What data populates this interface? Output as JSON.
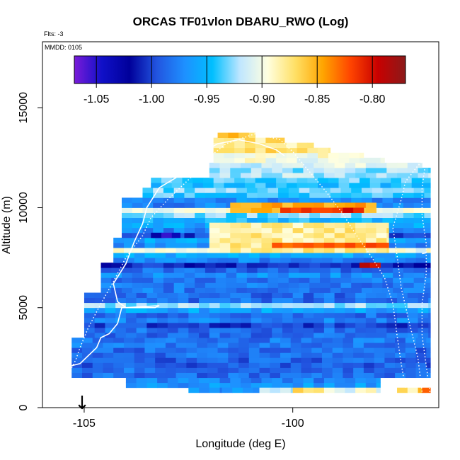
{
  "chart_data": {
    "type": "heatmap",
    "title": "ORCAS TF01vlon DBARU_RWO (Log)",
    "flts_label": "Flts: -3",
    "mmdd_label": "MMDD: 0105",
    "xlabel": "Longitude (deg E)",
    "ylabel": "Altitude (m)",
    "xlim": [
      -106.0,
      -96.5
    ],
    "ylim": [
      0,
      18300
    ],
    "xticks": [
      -105,
      -100
    ],
    "yticks": [
      0,
      5000,
      10000,
      15000
    ],
    "colorbar": {
      "range": [
        -1.07,
        -0.77
      ],
      "ticks": [
        -1.05,
        -1.0,
        -0.95,
        -0.9,
        -0.85,
        -0.8
      ],
      "tick_labels": [
        "-1.05",
        "-1.00",
        "-0.95",
        "-0.90",
        "-0.85",
        "-0.80"
      ],
      "colors": [
        "#7a1bd9",
        "#1010c8",
        "#00009a",
        "#2255e0",
        "#1e90ff",
        "#00bfff",
        "#bfe6ff",
        "#ffffe0",
        "#ffe066",
        "#ffa500",
        "#ff4500",
        "#c80000",
        "#8b1a1a"
      ]
    },
    "arrow_marker": {
      "longitude": -105.05,
      "label": "↓"
    },
    "grid": {
      "dx": 0.25,
      "dy": 250
    },
    "bands": [
      [
        1000,
        1250,
        -104.0,
        -97.9,
        -0.965
      ],
      [
        1250,
        1500,
        -104.0,
        -97.9,
        -0.975
      ],
      [
        1500,
        2000,
        -105.3,
        -96.7,
        -0.985
      ],
      [
        2000,
        2500,
        -105.3,
        -96.7,
        -0.99
      ],
      [
        2500,
        3000,
        -105.3,
        -96.7,
        -0.985
      ],
      [
        3000,
        3500,
        -105.3,
        -96.7,
        -0.98
      ],
      [
        3500,
        4000,
        -105.0,
        -96.7,
        -0.985
      ],
      [
        4000,
        4250,
        -105.0,
        -96.7,
        -1.0
      ],
      [
        4250,
        4500,
        -105.0,
        -96.7,
        -0.975
      ],
      [
        4500,
        4750,
        -105.0,
        -96.7,
        -0.985
      ],
      [
        4750,
        5000,
        -105.0,
        -96.7,
        -0.96
      ],
      [
        5000,
        5250,
        -105.0,
        -96.7,
        -0.925
      ],
      [
        5250,
        5750,
        -105.0,
        -96.7,
        -0.985
      ],
      [
        5750,
        6500,
        -104.6,
        -96.7,
        -0.98
      ],
      [
        6500,
        6750,
        -104.6,
        -96.7,
        -0.97
      ],
      [
        6750,
        7000,
        -104.6,
        -96.7,
        -0.985
      ],
      [
        7000,
        7250,
        -104.6,
        -96.7,
        -1.01
      ],
      [
        7250,
        7500,
        -104.3,
        -96.7,
        -0.975
      ],
      [
        7500,
        7750,
        -104.3,
        -96.7,
        -0.955
      ],
      [
        7750,
        8000,
        -104.3,
        -96.7,
        -0.9
      ],
      [
        8000,
        8250,
        -104.3,
        -96.7,
        -0.975
      ],
      [
        8250,
        8500,
        -104.3,
        -96.7,
        -0.96
      ],
      [
        8500,
        8750,
        -104.1,
        -96.7,
        -1.0
      ],
      [
        8750,
        9000,
        -104.1,
        -96.7,
        -0.975
      ],
      [
        9000,
        9250,
        -104.1,
        -96.7,
        -0.96
      ],
      [
        9250,
        9500,
        -104.1,
        -96.7,
        -0.95
      ],
      [
        9500,
        9750,
        -104.1,
        -96.7,
        -0.93
      ],
      [
        9750,
        10000,
        -104.1,
        -96.7,
        -0.9
      ],
      [
        10000,
        10250,
        -104.1,
        -96.7,
        -0.975
      ],
      [
        10250,
        10500,
        -104.1,
        -96.7,
        -0.97
      ],
      [
        10500,
        10750,
        -103.6,
        -96.7,
        -0.94
      ],
      [
        10750,
        11000,
        -103.6,
        -96.7,
        -0.93
      ],
      [
        11000,
        11250,
        -103.4,
        -96.7,
        -0.945
      ],
      [
        11250,
        11500,
        -103.4,
        -96.7,
        -0.935
      ],
      [
        11500,
        11750,
        -102.0,
        -96.7,
        -0.92
      ],
      [
        11750,
        12000,
        -102.0,
        -96.7,
        -0.925
      ],
      [
        12000,
        12250,
        -102.0,
        -96.9,
        -0.91
      ],
      [
        12250,
        12500,
        -101.9,
        -97.8,
        -0.9
      ],
      [
        12500,
        12750,
        -101.9,
        -98.3,
        -0.895
      ],
      [
        12750,
        13000,
        -101.9,
        -99.1,
        -0.87
      ],
      [
        13000,
        13250,
        -101.9,
        -99.5,
        -0.885
      ],
      [
        13250,
        13500,
        -101.9,
        -100.2,
        -0.875
      ],
      [
        13500,
        13750,
        -101.8,
        -100.9,
        -0.86
      ]
    ],
    "hotspots": [
      [
        7750,
        9250,
        -102.0,
        -97.7,
        -0.88
      ],
      [
        8000,
        8250,
        -100.5,
        -97.7,
        -0.83
      ],
      [
        9750,
        10250,
        -101.5,
        -98.0,
        -0.85
      ],
      [
        9750,
        10000,
        -100.3,
        -98.3,
        -0.81
      ],
      [
        8500,
        8750,
        -103.4,
        -102.7,
        -1.04
      ],
      [
        7000,
        7250,
        -98.4,
        -97.9,
        -0.8
      ]
    ],
    "surface_cells": [
      [
        -102.5,
        -101.7,
        -0.97
      ],
      [
        -101.7,
        -100.8,
        -0.955
      ],
      [
        -100.8,
        -100.0,
        -0.915
      ],
      [
        -100.0,
        -99.0,
        -0.88
      ],
      [
        -99.0,
        -97.9,
        -0.9
      ],
      [
        -97.5,
        -96.9,
        -0.87
      ],
      [
        -96.9,
        -96.7,
        -0.83
      ]
    ],
    "flight_tracks": [
      {
        "style": "solid",
        "points": [
          [
            -105.3,
            2100
          ],
          [
            -105.1,
            2200
          ],
          [
            -104.9,
            2600
          ],
          [
            -104.7,
            3000
          ],
          [
            -104.6,
            3500
          ],
          [
            -104.4,
            3700
          ],
          [
            -104.2,
            4200
          ],
          [
            -104.1,
            5000
          ],
          [
            -103.9,
            5000
          ],
          [
            -103.3,
            5000
          ],
          [
            -103.2,
            5100
          ],
          [
            -104.0,
            5000
          ],
          [
            -104.2,
            5300
          ],
          [
            -104.3,
            6200
          ],
          [
            -104.0,
            7200
          ],
          [
            -103.8,
            8300
          ],
          [
            -103.6,
            9200
          ],
          [
            -103.5,
            10000
          ],
          [
            -103.2,
            11000
          ],
          [
            -102.8,
            11500
          ],
          [
            -102.4,
            12500
          ],
          [
            -101.8,
            13200
          ],
          [
            -101.3,
            13400
          ],
          [
            -100.8,
            13200
          ],
          [
            -100.4,
            12900
          ],
          [
            -100.2,
            12600
          ]
        ]
      },
      {
        "style": "dotted",
        "points": [
          [
            -105.3,
            2000
          ],
          [
            -105.2,
            2400
          ],
          [
            -105.1,
            3000
          ],
          [
            -104.9,
            4000
          ],
          [
            -104.6,
            5200
          ],
          [
            -104.3,
            6300
          ],
          [
            -104.0,
            7500
          ],
          [
            -103.6,
            8600
          ],
          [
            -103.4,
            9500
          ],
          [
            -103.0,
            10400
          ],
          [
            -102.6,
            11200
          ],
          [
            -102.2,
            12000
          ],
          [
            -101.9,
            12700
          ],
          [
            -101.6,
            13200
          ],
          [
            -100.9,
            13700
          ],
          [
            -100.3,
            13400
          ],
          [
            -100.0,
            12800
          ],
          [
            -99.6,
            11800
          ],
          [
            -99.2,
            10800
          ],
          [
            -98.8,
            9700
          ],
          [
            -98.5,
            8700
          ],
          [
            -98.1,
            7500
          ],
          [
            -97.8,
            6500
          ],
          [
            -97.6,
            5200
          ],
          [
            -97.5,
            3600
          ],
          [
            -97.4,
            2200
          ],
          [
            -97.3,
            1000
          ]
        ]
      },
      {
        "style": "dotted",
        "points": [
          [
            -96.9,
            800
          ],
          [
            -97.0,
            2500
          ],
          [
            -97.2,
            4200
          ],
          [
            -97.4,
            6000
          ],
          [
            -97.5,
            7600
          ],
          [
            -97.6,
            9000
          ],
          [
            -97.4,
            10400
          ],
          [
            -97.3,
            11300
          ],
          [
            -97.0,
            12100
          ],
          [
            -96.8,
            12500
          ],
          [
            -96.9,
            11000
          ],
          [
            -96.9,
            9600
          ],
          [
            -96.8,
            8200
          ],
          [
            -96.8,
            6700
          ],
          [
            -96.9,
            5200
          ],
          [
            -96.9,
            3600
          ],
          [
            -96.8,
            2100
          ],
          [
            -96.7,
            600
          ]
        ]
      },
      {
        "style": "solid",
        "points": [
          [
            -96.9,
            7700
          ],
          [
            -96.8,
            7750
          ]
        ]
      }
    ]
  }
}
